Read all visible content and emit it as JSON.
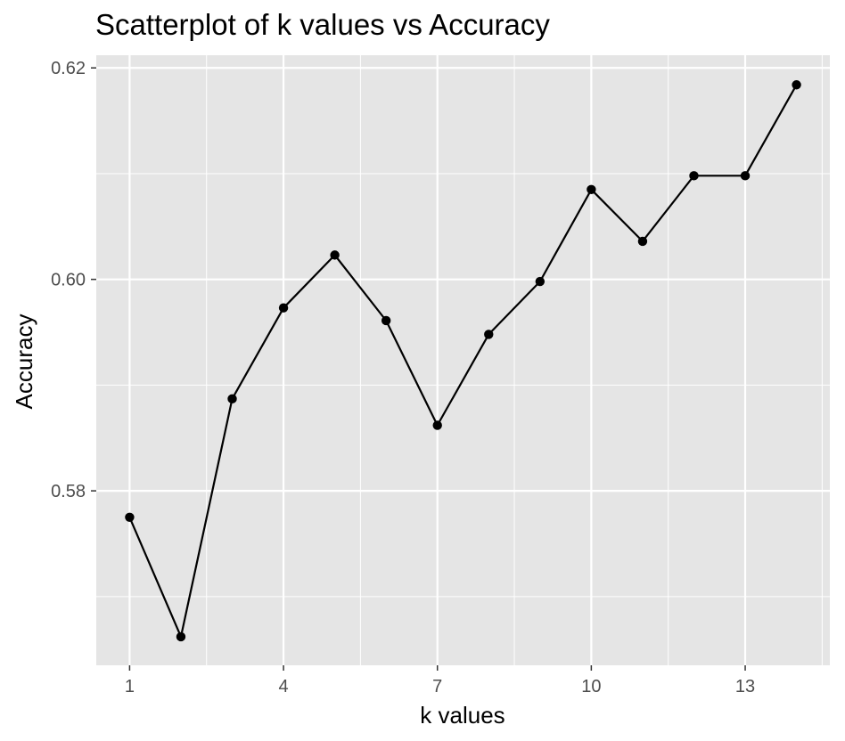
{
  "chart_data": {
    "type": "line",
    "title": "Scatterplot of k values vs Accuracy",
    "xlabel": "k values",
    "ylabel": "Accuracy",
    "x": [
      1,
      2,
      3,
      4,
      5,
      6,
      7,
      8,
      9,
      10,
      11,
      12,
      13,
      14
    ],
    "y": [
      0.5775,
      0.5662,
      0.5887,
      0.5973,
      0.6023,
      0.5961,
      0.5862,
      0.5948,
      0.5998,
      0.6085,
      0.6036,
      0.6098,
      0.6098,
      0.6184
    ],
    "xlim": [
      0.35,
      14.65
    ],
    "ylim": [
      0.5635,
      0.6212
    ],
    "xticks": [
      1,
      4,
      7,
      10,
      13
    ],
    "xtick_labels": [
      "1",
      "4",
      "7",
      "10",
      "13"
    ],
    "yticks": [
      0.58,
      0.6,
      0.62
    ],
    "ytick_labels": [
      "0.58",
      "0.60",
      "0.62"
    ],
    "grid": true,
    "colors": {
      "panel_background": "#e5e5e5",
      "grid": "#ffffff",
      "line": "#000000",
      "point": "#000000",
      "tick_label": "#4d4d4d"
    }
  }
}
